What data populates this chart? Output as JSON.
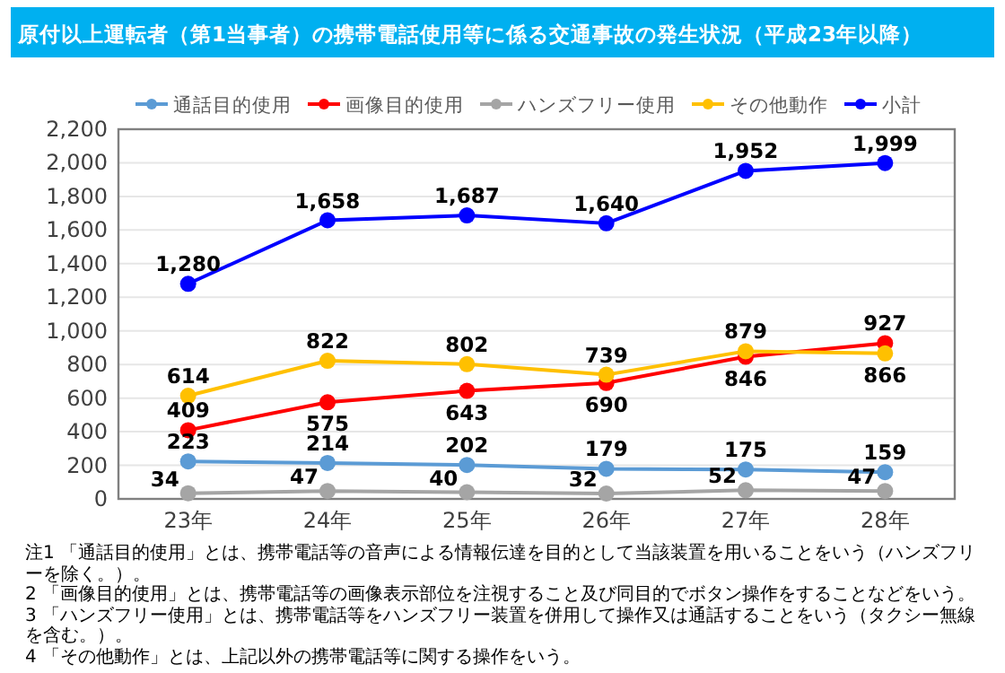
{
  "chart_data": {
    "type": "line",
    "title": "原付以上運転者（第1当事者）の携帯電話使用等に係る交通事故の発生状況（平成23年以降）",
    "categories": [
      "23年",
      "24年",
      "25年",
      "26年",
      "27年",
      "28年"
    ],
    "series": [
      {
        "name": "通話目的使用",
        "color": "#5b9bd5",
        "values": [
          223,
          214,
          202,
          179,
          175,
          159
        ],
        "value_labels": [
          "223",
          "214",
          "202",
          "179",
          "175",
          "159"
        ]
      },
      {
        "name": "画像目的使用",
        "color": "#ff0000",
        "values": [
          409,
          575,
          643,
          690,
          846,
          927
        ],
        "value_labels": [
          "409",
          "575",
          "643",
          "690",
          "846",
          "927"
        ]
      },
      {
        "name": "ハンズフリー使用",
        "color": "#a5a5a5",
        "values": [
          34,
          47,
          40,
          32,
          52,
          47
        ],
        "value_labels": [
          "34",
          "47",
          "40",
          "32",
          "52",
          "47"
        ]
      },
      {
        "name": "その他動作",
        "color": "#ffc000",
        "values": [
          614,
          822,
          802,
          739,
          879,
          866
        ],
        "value_labels": [
          "614",
          "822",
          "802",
          "739",
          "879",
          "866"
        ]
      },
      {
        "name": "小計",
        "color": "#0000ff",
        "values": [
          1280,
          1658,
          1687,
          1640,
          1952,
          1999
        ],
        "value_labels": [
          "1,280",
          "1,658",
          "1,687",
          "1,640",
          "1,952",
          "1,999"
        ]
      }
    ],
    "ylim": [
      0,
      2200
    ],
    "yticks": [
      0,
      200,
      400,
      600,
      800,
      {
        "value": 1000,
        "label": "1,000"
      },
      {
        "value": 1200,
        "label": "1,200"
      },
      {
        "value": 1400,
        "label": "1,400"
      },
      {
        "value": 1600,
        "label": "1,600"
      },
      {
        "value": 1800,
        "label": "1,800"
      },
      {
        "value": 2000,
        "label": "2,000"
      },
      {
        "value": 2200,
        "label": "2,200"
      }
    ],
    "grid": "y",
    "legend": "top",
    "marker": "circle",
    "line_style": "solid",
    "annotations": [
      "注1 「通話目的使用」とは、携帯電話等の音声による情報伝達を目的として当該装置を用いることをいう（ハンズフリーを除く。）。",
      "2 「画像目的使用」とは、携帯電話等の画像表示部位を注視すること及び同目的でボタン操作をすることなどをいう。",
      "3 「ハンズフリー使用」とは、携帯電話等をハンズフリー装置を併用して操作又は通話することをいう（タクシー無線を含む。）。",
      "4 「その他動作」とは、上記以外の携帯電話等に関する操作をいう。"
    ]
  }
}
